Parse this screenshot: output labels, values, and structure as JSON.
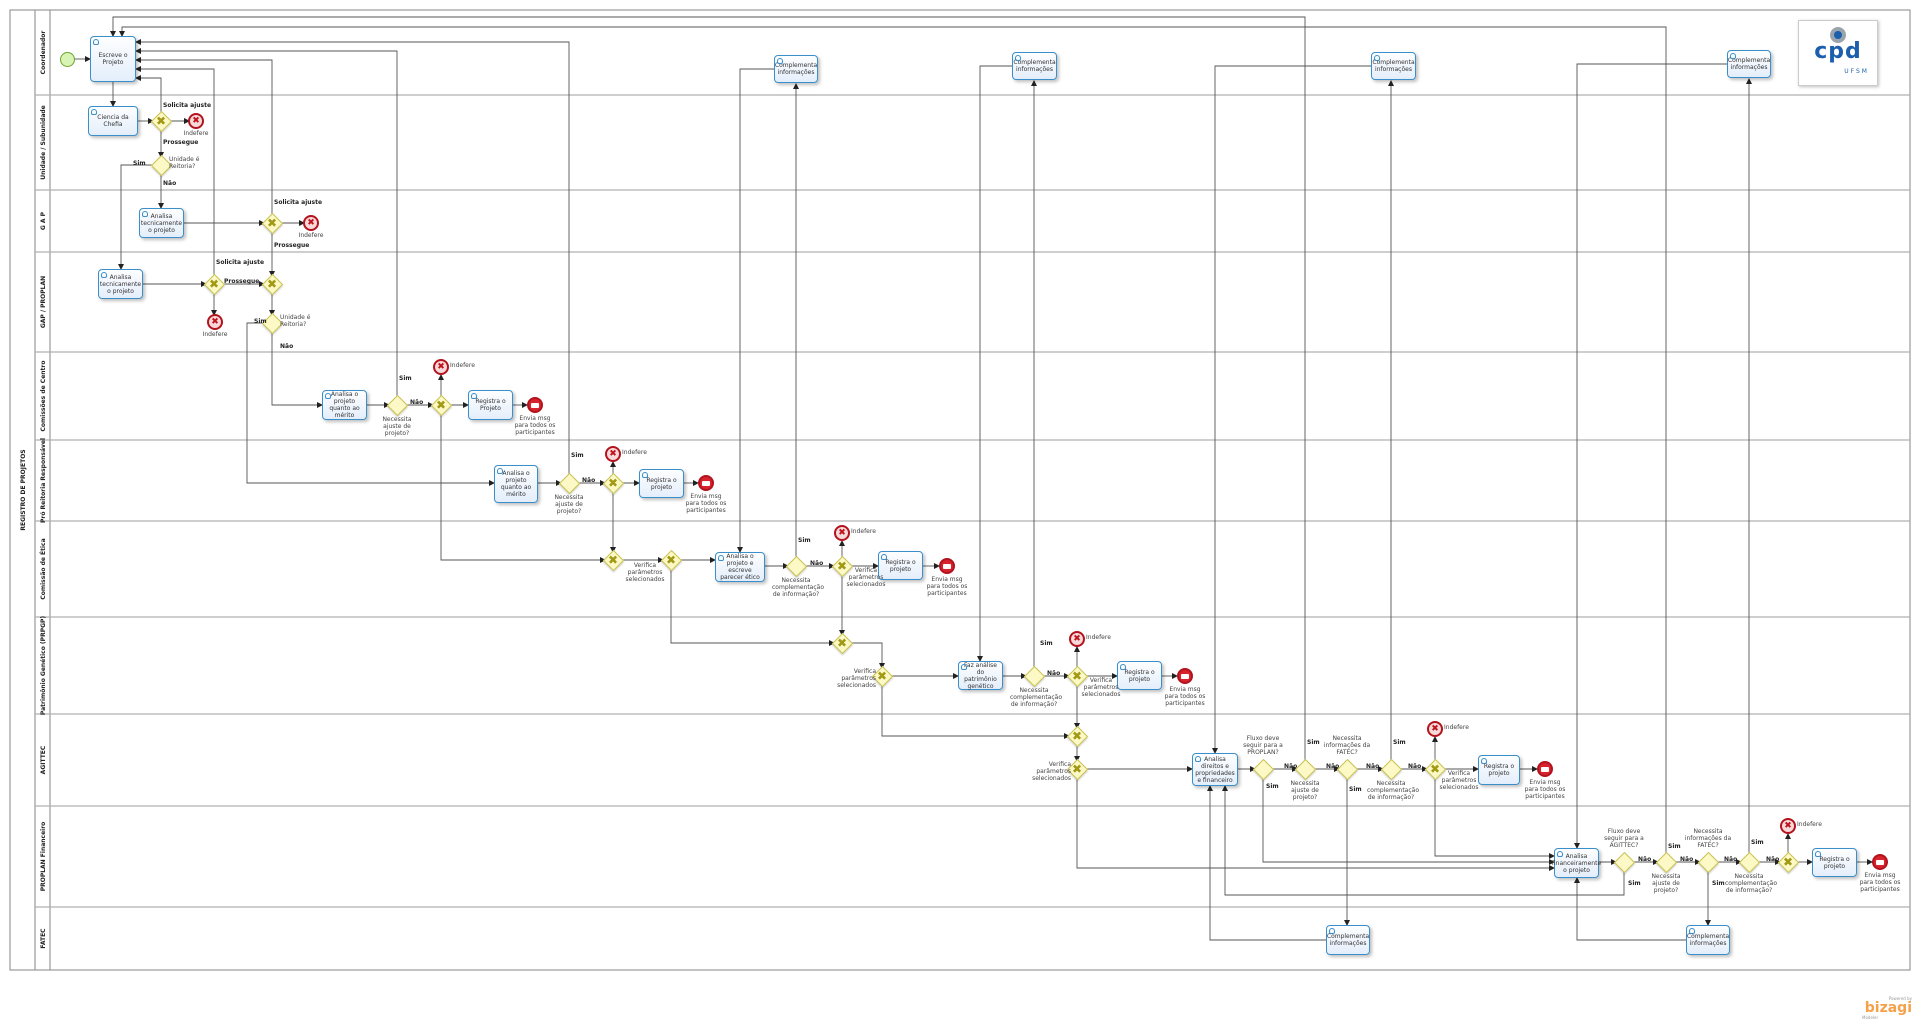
{
  "pool": {
    "title": "REGISTRO DE PROJETOS"
  },
  "lanes": [
    "Coordenador",
    "Unidade / Subunidade",
    "G A P",
    "GAP / PROPLAN",
    "Comissões de Centro",
    "Pró Reitoria Responsável",
    "Comissão de Ética",
    "Patrimônio Genético (PRPGP)",
    "AGITTEC",
    "PROPLAN Financeiro",
    "FATEC"
  ],
  "tasks": [
    "Escreve o Projeto",
    "Ciencia da Chefia",
    "Analisa tecnicamente o projeto",
    "Analisa tecnicamente o projeto",
    "Analisa o projeto quanto ao mérito",
    "Registra o Projeto",
    "Analisa o projeto quanto ao mérito",
    "Registra o projeto",
    "Analisa o projeto e escreve parecer ético",
    "Registra o projeto",
    "Faz análise do patrimônio genético",
    "Registra o projeto",
    "Analisa direitos e propriedades e financeiro",
    "Registra o projeto",
    "Analisa financeiramente o projeto",
    "Registra o projeto",
    "Complementa informações",
    "Complementa informações",
    "Complementa informações",
    "Complementa informações",
    "Complementa informações",
    "Complementa informações"
  ],
  "gateways": [
    "",
    "Unidade é Reitoria?",
    "",
    "",
    "",
    "Unidade é Reitoria?",
    "Necessita ajuste de projeto?",
    "",
    "Necessita ajuste de projeto?",
    "",
    "",
    "Verifica parâmetros selecionados",
    "Necessita complementação de informação?",
    "Verifica parâmetros selecionados",
    "",
    "Verifica parâmetros selecionados",
    "Necessita complementação de informação?",
    "Verifica parâmetros selecionados",
    "",
    "Verifica parâmetros selecionados",
    "Fluxo deve seguir para a PROPLAN?",
    "Necessita ajuste de projeto?",
    "Necessita informações da FATEC?",
    "Necessita complementação de informação?",
    "Verifica parâmetros selecionados",
    "Fluxo deve seguir para a AGITTEC?",
    "Necessita ajuste de projeto?",
    "Necessita informações da FATEC?",
    "Necessita complementação de informação?",
    ""
  ],
  "end_events": [
    "Indefere",
    "Indefere",
    "Indefere",
    "Indefere",
    "Indefere",
    "Indefere",
    "Indefere",
    "Indefere",
    "Indefere"
  ],
  "message_events": [
    "Envia msg para todos os participantes",
    "Envia msg para todos os participantes",
    "Envia msg para todos os participantes",
    "Envia msg para todos os participantes",
    "Envia msg para todos os participantes",
    "Envia msg para todos os participantes"
  ],
  "flow_labels": [
    "Solicita ajuste",
    "Prossegue",
    "Sim",
    "Não",
    "Solicita ajuste",
    "Prossegue",
    "Solicita ajuste",
    "Prossegue",
    "Sim",
    "Não",
    "Sim",
    "Não",
    "Sim",
    "Não",
    "Sim",
    "Não",
    "Sim",
    "Não",
    "Sim",
    "Não",
    "Sim",
    "Não",
    "Sim",
    "Não",
    "Sim",
    "Não",
    "Não",
    "Sim",
    "Sim",
    "Não",
    "Sim",
    "Não",
    "Sim",
    "Não"
  ],
  "logo": {
    "mark": "cpd",
    "sub": "UFSM"
  },
  "watermark": {
    "powered": "Powered by",
    "brand": "bizagi",
    "product": "Modeler"
  },
  "colors": {
    "task_border": "#3a8ec9",
    "gateway_fill": "#fcf9c6",
    "end_event": "#b3131d",
    "start_event": "#6aa52a"
  }
}
